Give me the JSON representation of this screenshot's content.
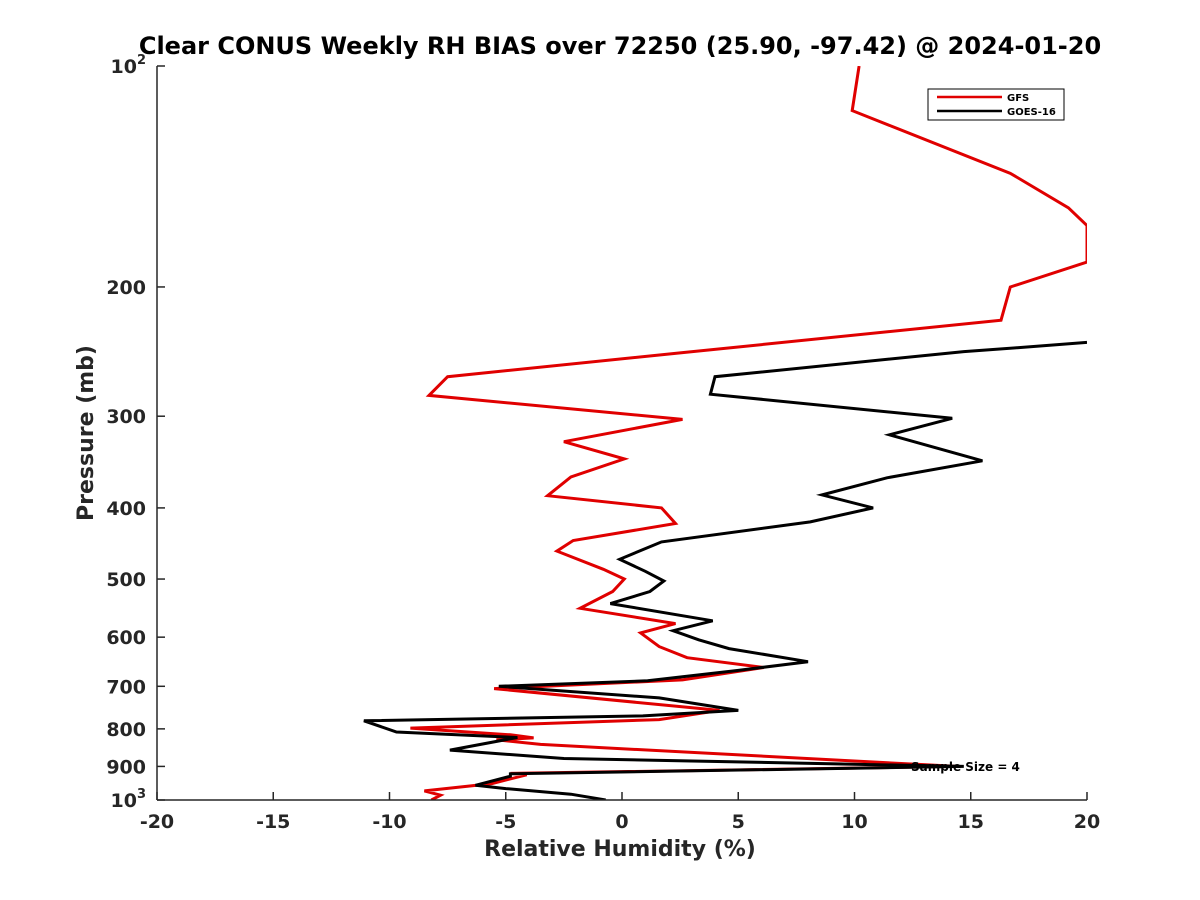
{
  "chart_data": {
    "type": "line",
    "title": "Clear CONUS Weekly RH BIAS over 72250 (25.90, -97.42) @ 2024-01-20",
    "xlabel": "Relative Humidity (%)",
    "ylabel": "Pressure (mb)",
    "xlim": [
      -20,
      20
    ],
    "ylim": [
      100,
      1000
    ],
    "y_scale": "log",
    "y_reversed": true,
    "grid": false,
    "legend_position": "top-right",
    "x_ticks": [
      "-20",
      "-15",
      "-10",
      "-5",
      "0",
      "5",
      "10",
      "15",
      "20"
    ],
    "y_ticks": [
      {
        "base": "10",
        "exp": "2"
      },
      {
        "base": "200",
        "exp": ""
      },
      {
        "base": "300",
        "exp": ""
      },
      {
        "base": "400",
        "exp": ""
      },
      {
        "base": "500",
        "exp": ""
      },
      {
        "base": "600",
        "exp": ""
      },
      {
        "base": "700",
        "exp": ""
      },
      {
        "base": "800",
        "exp": ""
      },
      {
        "base": "900",
        "exp": ""
      },
      {
        "base": "10",
        "exp": "3"
      }
    ],
    "annotation": "Sample Size = 4",
    "series": [
      {
        "name": "GFS",
        "color": "#e00000",
        "points": [
          [
            10.2,
            100
          ],
          [
            9.9,
            115
          ],
          [
            16.7,
            140
          ],
          [
            19.2,
            156
          ],
          [
            20.0,
            165
          ],
          [
            20.0,
            185
          ],
          [
            16.7,
            200
          ],
          [
            16.3,
            222
          ],
          [
            2.5,
            246
          ],
          [
            -7.5,
            265
          ],
          [
            -8.3,
            281
          ],
          [
            2.6,
            303
          ],
          [
            -2.5,
            325
          ],
          [
            0.1,
            343
          ],
          [
            -2.2,
            363
          ],
          [
            -3.2,
            385
          ],
          [
            1.7,
            400
          ],
          [
            2.3,
            420
          ],
          [
            -2.1,
            443
          ],
          [
            -2.8,
            458
          ],
          [
            -0.8,
            485
          ],
          [
            0.1,
            500
          ],
          [
            -0.4,
            520
          ],
          [
            -1.8,
            548
          ],
          [
            2.3,
            575
          ],
          [
            0.8,
            592
          ],
          [
            1.6,
            618
          ],
          [
            2.8,
            640
          ],
          [
            6.1,
            660
          ],
          [
            2.6,
            686
          ],
          [
            -5.5,
            705
          ],
          [
            4.2,
            755
          ],
          [
            1.6,
            777
          ],
          [
            -9.1,
            798
          ],
          [
            -4.8,
            815
          ],
          [
            -3.8,
            823
          ],
          [
            -5.4,
            828
          ],
          [
            -3.5,
            840
          ],
          [
            14.4,
            900
          ],
          [
            -4.8,
            920
          ],
          [
            -4.1,
            924
          ],
          [
            -5.6,
            950
          ],
          [
            -8.5,
            972
          ],
          [
            -7.8,
            985
          ],
          [
            -8.2,
            1000
          ]
        ]
      },
      {
        "name": "GOES-16",
        "color": "#000000",
        "points": [
          [
            20.0,
            238
          ],
          [
            17.0,
            242
          ],
          [
            14.7,
            245
          ],
          [
            4.0,
            265
          ],
          [
            3.8,
            280
          ],
          [
            14.2,
            302
          ],
          [
            11.5,
            318
          ],
          [
            15.5,
            345
          ],
          [
            11.4,
            364
          ],
          [
            8.6,
            384
          ],
          [
            10.8,
            400
          ],
          [
            8.1,
            418
          ],
          [
            1.7,
            445
          ],
          [
            -0.1,
            470
          ],
          [
            1.0,
            488
          ],
          [
            1.8,
            503
          ],
          [
            1.2,
            520
          ],
          [
            -0.5,
            540
          ],
          [
            3.9,
            570
          ],
          [
            2.2,
            588
          ],
          [
            3.3,
            605
          ],
          [
            4.6,
            622
          ],
          [
            8.0,
            648
          ],
          [
            5.0,
            666
          ],
          [
            1.1,
            688
          ],
          [
            -5.3,
            700
          ],
          [
            1.6,
            726
          ],
          [
            5.0,
            755
          ],
          [
            0.9,
            768
          ],
          [
            -11.1,
            780
          ],
          [
            -9.7,
            808
          ],
          [
            -4.5,
            822
          ],
          [
            -7.4,
            855
          ],
          [
            -2.5,
            878
          ],
          [
            14.7,
            900
          ],
          [
            -4.8,
            921
          ],
          [
            -4.8,
            928
          ],
          [
            -6.3,
            955
          ],
          [
            -5.0,
            965
          ],
          [
            -2.2,
            982
          ],
          [
            -0.7,
            1000
          ]
        ]
      }
    ]
  }
}
